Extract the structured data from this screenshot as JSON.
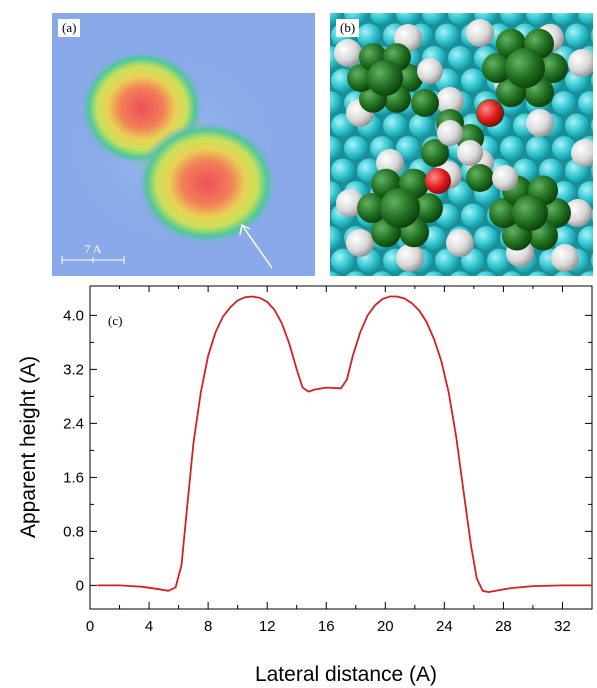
{
  "panels": {
    "a": {
      "label": "(a)",
      "scalebar_label": "7 A"
    },
    "b": {
      "label": "(b)"
    }
  },
  "colors": {
    "stm_background": "#8aa9e8",
    "lattice_atom": "#2fc4cf",
    "carbon": "#1f6e1f",
    "hydrogen": "#e2e2e2",
    "oxygen": "#e01b1b",
    "profile_line": "#d62020"
  },
  "chart_data": {
    "type": "line",
    "panel_label": "(c)",
    "title": "",
    "xlabel": "Lateral distance (A)",
    "ylabel": "Apparent height (A)",
    "xlim": [
      0,
      34
    ],
    "ylim": [
      -0.35,
      4.45
    ],
    "xticks": [
      0,
      4,
      8,
      12,
      16,
      20,
      24,
      28,
      32
    ],
    "yticks": [
      0,
      0.8,
      1.6,
      2.4,
      3.2,
      4.0
    ],
    "ytick_labels": [
      "0",
      "0.8",
      "1.6",
      "2.4",
      "3.2",
      "4.0"
    ],
    "series": [
      {
        "x": [
          0.5,
          2,
          3.5,
          4.5,
          5.3,
          5.8,
          6.2,
          6.6,
          7.0,
          7.5,
          8.0,
          8.5,
          9.0,
          9.5,
          10.0,
          10.5,
          11.0,
          11.5,
          12.0,
          12.5,
          13.0,
          13.5,
          14.0,
          14.4,
          14.8,
          15.2,
          16.0,
          17.0,
          17.4,
          17.8,
          18.3,
          18.8,
          19.3,
          19.8,
          20.3,
          20.8,
          21.3,
          21.8,
          22.3,
          22.8,
          23.3,
          23.8,
          24.3,
          24.8,
          25.3,
          25.8,
          26.2,
          26.6,
          27.0,
          27.5,
          28.5,
          30,
          32,
          34
        ],
        "y": [
          0.0,
          0.0,
          -0.02,
          -0.05,
          -0.08,
          -0.03,
          0.3,
          1.2,
          2.1,
          2.85,
          3.4,
          3.75,
          3.98,
          4.12,
          4.22,
          4.27,
          4.28,
          4.26,
          4.2,
          4.08,
          3.88,
          3.58,
          3.2,
          2.93,
          2.87,
          2.9,
          2.93,
          2.92,
          3.05,
          3.4,
          3.75,
          4.0,
          4.15,
          4.24,
          4.28,
          4.28,
          4.25,
          4.18,
          4.07,
          3.9,
          3.65,
          3.32,
          2.85,
          2.2,
          1.4,
          0.6,
          0.1,
          -0.08,
          -0.1,
          -0.08,
          -0.04,
          -0.01,
          0.0,
          0.0
        ]
      }
    ]
  }
}
